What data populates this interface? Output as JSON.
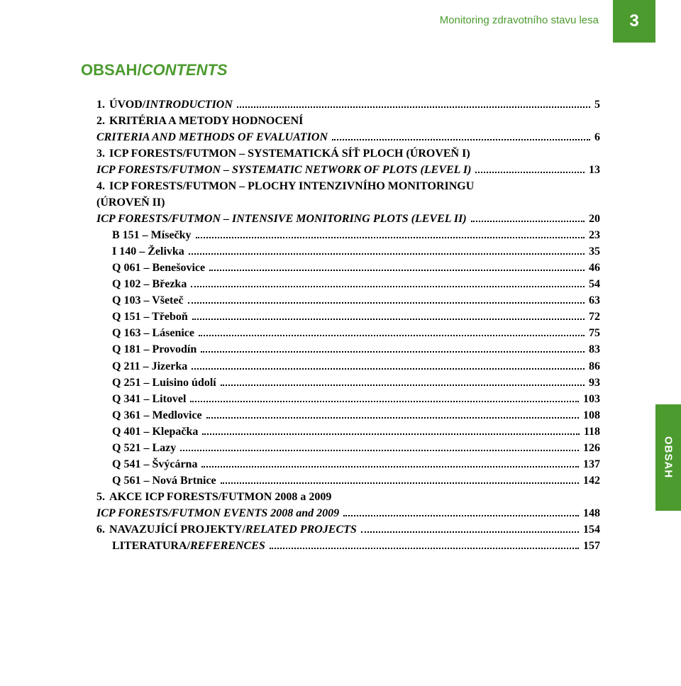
{
  "page": {
    "number": "3",
    "running_header": "Monitoring zdravotního stavu lesa",
    "side_tab": "OBSAH",
    "heading_main": "OBSAH/",
    "heading_it": "CONTENTS",
    "tab_bg": "#4c9b2f",
    "tab_fg": "#ffffff"
  },
  "toc": [
    {
      "type": "heading",
      "num": "1.",
      "label": "ÚVOD/",
      "label_it": "INTRODUCTION",
      "page": "5",
      "bold": true
    },
    {
      "type": "heading",
      "num": "2.",
      "label": "KRITÉRIA A METODY HODNOCENÍ",
      "bold": true,
      "nopage": true
    },
    {
      "type": "heading_cont",
      "label_it": "CRITERIA AND METHODS OF EVALUATION",
      "page": "6",
      "bold": true
    },
    {
      "type": "heading",
      "num": "3.",
      "label": "ICP FORESTS/FUTMON – SYSTEMATICKÁ SÍŤ PLOCH (ÚROVEŇ I)",
      "bold": true,
      "nopage": true
    },
    {
      "type": "heading_cont",
      "label_it": "ICP FORESTS/FUTMON – SYSTEMATIC NETWORK OF PLOTS (LEVEL I)",
      "page": "13",
      "bold": true
    },
    {
      "type": "heading",
      "num": "4.",
      "label": "ICP FORESTS/FUTMON – PLOCHY INTENZIVNÍHO MONITORINGU",
      "bold": true,
      "nopage": true
    },
    {
      "type": "heading_cont",
      "label": "(ÚROVEŇ II)",
      "bold": true,
      "nopage": true
    },
    {
      "type": "heading_cont",
      "label_it": "ICP FORESTS/FUTMON – INTENSIVE MONITORING PLOTS (LEVEL II)",
      "page": "20",
      "bold": true
    },
    {
      "type": "sub",
      "label": "B 151 – Mísečky",
      "page": "23",
      "bold": true
    },
    {
      "type": "sub",
      "label": "I 140 – Želivka",
      "page": "35",
      "bold": true
    },
    {
      "type": "sub",
      "label": "Q 061 – Benešovice",
      "page": "46",
      "bold": true
    },
    {
      "type": "sub",
      "label": "Q 102 – Březka",
      "page": "54",
      "bold": true
    },
    {
      "type": "sub",
      "label": "Q 103 – Všeteč",
      "page": "63",
      "bold": true
    },
    {
      "type": "sub",
      "label": "Q 151 – Třeboň",
      "page": "72",
      "bold": true
    },
    {
      "type": "sub",
      "label": "Q 163 – Lásenice",
      "page": "75",
      "bold": true
    },
    {
      "type": "sub",
      "label": "Q 181 – Provodín",
      "page": "83",
      "bold": true
    },
    {
      "type": "sub",
      "label": "Q 211 – Jizerka",
      "page": "86",
      "bold": true
    },
    {
      "type": "sub",
      "label": "Q 251 – Luisino údolí",
      "page": "93",
      "bold": true
    },
    {
      "type": "sub",
      "label": "Q 341 – Litovel",
      "page": "103",
      "bold": true
    },
    {
      "type": "sub",
      "label": "Q 361 – Medlovice",
      "page": "108",
      "bold": true
    },
    {
      "type": "sub",
      "label": "Q 401 – Klepačka",
      "page": "118",
      "bold": true
    },
    {
      "type": "sub",
      "label": "Q 521 – Lazy",
      "page": "126",
      "bold": true
    },
    {
      "type": "sub",
      "label": "Q 541 – Švýcárna",
      "page": "137",
      "bold": true
    },
    {
      "type": "sub",
      "label": "Q 561 – Nová Brtnice",
      "page": "142",
      "bold": true
    },
    {
      "type": "heading",
      "num": "5.",
      "label": "AKCE ICP FORESTS/FUTMON 2008 a 2009",
      "bold": true,
      "nopage": true
    },
    {
      "type": "heading_cont",
      "label_it": "ICP FORESTS/FUTMON EVENTS 2008 and 2009",
      "page": "148",
      "bold": true
    },
    {
      "type": "heading",
      "num": "6.",
      "label": "NAVAZUJÍCÍ PROJEKTY/",
      "label_it": "RELATED PROJECTS",
      "page": "154",
      "bold": true
    },
    {
      "type": "sub",
      "label": "LITERATURA/",
      "label_it": "REFERENCES",
      "page": "157",
      "bold": true
    }
  ]
}
